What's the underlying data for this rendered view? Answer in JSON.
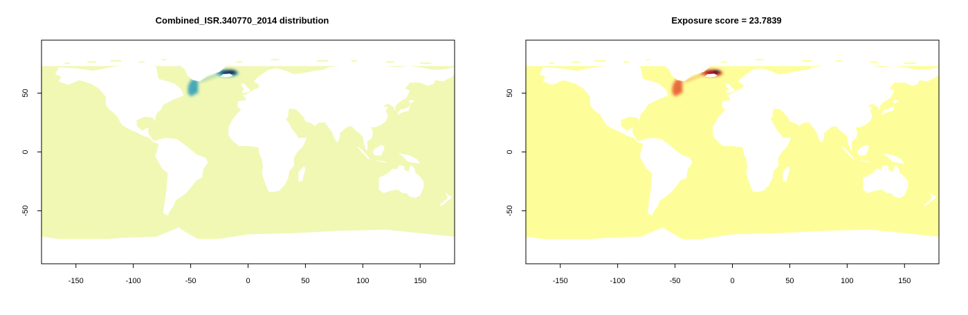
{
  "panels": [
    {
      "title": "Combined_ISR.340770_2014 distribution",
      "ocean_color": "#f1f8b4",
      "hotspot_colors": [
        "#2a9bb8",
        "#0b3c6e",
        "#081d45"
      ]
    },
    {
      "title": "Exposure score = 23.7839",
      "ocean_color": "#fdfe9a",
      "hotspot_colors": [
        "#e5542a",
        "#b0101f",
        "#2b0030"
      ]
    }
  ],
  "chart_data": [
    {
      "type": "heatmap",
      "title": "Combined_ISR.340770_2014 distribution",
      "xlabel": "",
      "ylabel": "",
      "xlim": [
        -180,
        180
      ],
      "ylim": [
        -95,
        95
      ],
      "x_ticks": [
        -150,
        -100,
        -50,
        0,
        50,
        100,
        150
      ],
      "y_ticks": [
        -50,
        0,
        50
      ],
      "hotspots": [
        {
          "lon": -47,
          "lat": 55,
          "intensity": "medium"
        },
        {
          "lon": -18,
          "lat": 67,
          "intensity": "high"
        }
      ]
    },
    {
      "type": "heatmap",
      "title": "Exposure score = 23.7839",
      "xlabel": "",
      "ylabel": "",
      "xlim": [
        -180,
        180
      ],
      "ylim": [
        -95,
        95
      ],
      "x_ticks": [
        -150,
        -100,
        -50,
        0,
        50,
        100,
        150
      ],
      "y_ticks": [
        -50,
        0,
        50
      ],
      "hotspots": [
        {
          "lon": -47,
          "lat": 55,
          "intensity": "medium"
        },
        {
          "lon": -18,
          "lat": 67,
          "intensity": "high"
        }
      ]
    }
  ]
}
